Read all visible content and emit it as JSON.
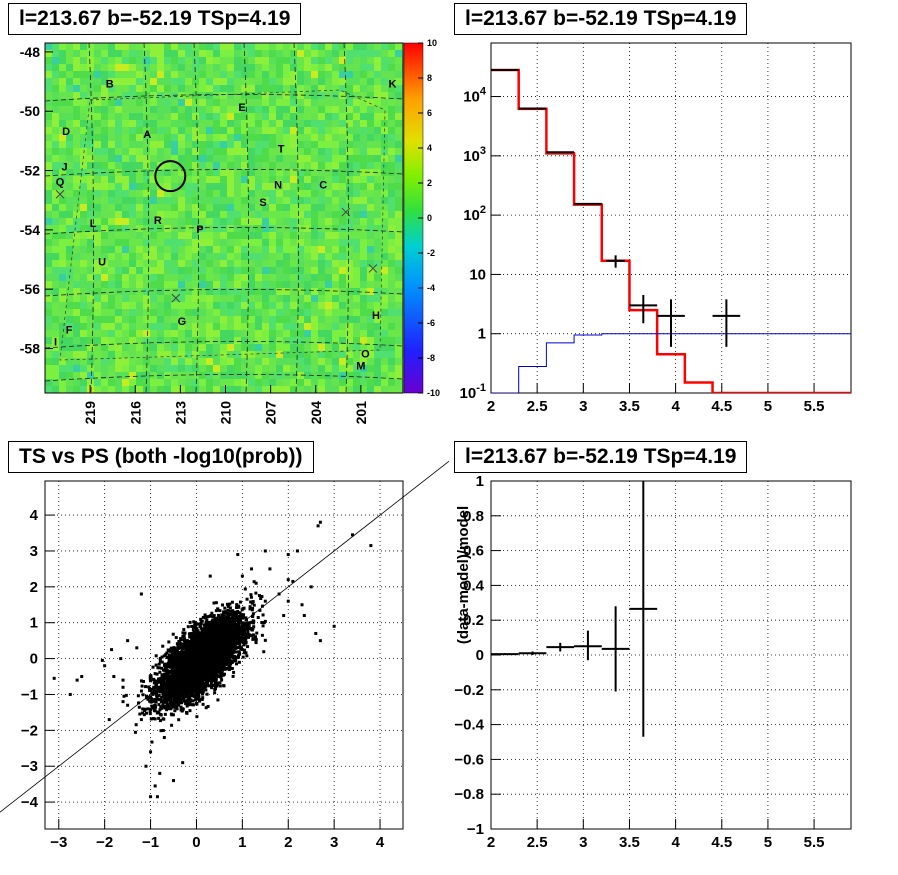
{
  "colors": {
    "accent": "#ff0000",
    "model_line": "#0000cc",
    "data_marks": "#000000"
  },
  "panels": {
    "sky_map": {
      "title": "l=213.67 b=-52.19 TSp=4.19"
    },
    "spectrum": {
      "title": "l=213.67 b=-52.19 TSp=4.19"
    },
    "ts_vs_ps": {
      "title": "TS vs PS (both -log10(prob))"
    },
    "residual": {
      "title": "l=213.67 b=-52.19 TSp=4.19"
    }
  },
  "chart_data": [
    {
      "type": "heatmap",
      "panel": "sky_map",
      "title": "l=213.67 b=-52.19 TSp=4.19",
      "xlabel": "",
      "ylabel": "",
      "x_ticks": [
        "219",
        "216",
        "213",
        "210",
        "207",
        "204",
        "201"
      ],
      "y_ticks": [
        "-48",
        "-50",
        "-52",
        "-54",
        "-56",
        "-58"
      ],
      "xlim": [
        222,
        198.2
      ],
      "ylim": [
        -59.5,
        -47.7
      ],
      "colorbar": {
        "min": -10,
        "max": 10,
        "ticks": [
          "10",
          "8",
          "6",
          "4",
          "2",
          "0",
          "-2",
          "-4",
          "-6",
          "-8",
          "-10"
        ]
      },
      "dominant_value_range": [
        0,
        1.5
      ],
      "labels": [
        {
          "text": "B",
          "l": 217.7,
          "b": -49.2
        },
        {
          "text": "K",
          "l": 198.9,
          "b": -49.2
        },
        {
          "text": "E",
          "l": 208.9,
          "b": -50.0
        },
        {
          "text": "D",
          "l": 220.6,
          "b": -50.8
        },
        {
          "text": "A",
          "l": 215.2,
          "b": -50.9
        },
        {
          "text": "T",
          "l": 206.3,
          "b": -51.4
        },
        {
          "text": "J",
          "l": 220.7,
          "b": -52.0
        },
        {
          "text": "Q",
          "l": 221.0,
          "b": -52.5
        },
        {
          "text": "N",
          "l": 206.5,
          "b": -52.6
        },
        {
          "text": "C",
          "l": 203.5,
          "b": -52.6
        },
        {
          "text": "S",
          "l": 207.5,
          "b": -53.2
        },
        {
          "text": "L",
          "l": 218.8,
          "b": -53.9
        },
        {
          "text": "R",
          "l": 214.5,
          "b": -53.8
        },
        {
          "text": "P",
          "l": 211.7,
          "b": -54.1
        },
        {
          "text": "U",
          "l": 218.2,
          "b": -55.2
        },
        {
          "text": "G",
          "l": 212.9,
          "b": -57.2
        },
        {
          "text": "H",
          "l": 200.0,
          "b": -57.0
        },
        {
          "text": "F",
          "l": 220.4,
          "b": -57.5
        },
        {
          "text": "I",
          "l": 221.3,
          "b": -57.9
        },
        {
          "text": "O",
          "l": 200.7,
          "b": -58.3
        },
        {
          "text": "M",
          "l": 201.0,
          "b": -58.7
        }
      ],
      "circle": {
        "l": 213.67,
        "b": -52.19
      },
      "crosses": [
        {
          "l": 202.0,
          "b": -53.4
        },
        {
          "l": 200.2,
          "b": -55.3
        },
        {
          "l": 213.3,
          "b": -56.3
        },
        {
          "l": 221.0,
          "b": -52.8
        }
      ]
    },
    {
      "type": "line",
      "panel": "spectrum",
      "title": "l=213.67 b=-52.19 TSp=4.19",
      "xlabel": "",
      "ylabel": "",
      "x_ticks": [
        "2",
        "2.5",
        "3",
        "3.5",
        "4",
        "4.5",
        "5",
        "5.5"
      ],
      "y_ticks": [
        "10^-1",
        "1",
        "10",
        "10^2",
        "10^3",
        "10^4"
      ],
      "xlim": [
        2,
        5.9
      ],
      "ylim": [
        0.1,
        80000
      ],
      "yscale": "log",
      "grid": true,
      "series": [
        {
          "style": "hist",
          "color": "#ff0000",
          "edges": [
            2,
            2.3,
            2.6,
            2.9,
            3.2,
            3.5,
            3.8,
            4.1,
            4.4,
            4.7,
            5.0,
            5.3,
            5.6,
            5.9
          ],
          "values": [
            28000,
            6200,
            1100,
            150,
            17,
            2.5,
            0.45,
            0.15,
            0.1,
            0.1,
            0.1,
            0.1,
            0.1
          ]
        },
        {
          "style": "hist",
          "color": "#0000cc",
          "edges": [
            2,
            2.3,
            2.6,
            2.9,
            3.2,
            3.5,
            3.8,
            4.1,
            4.4,
            4.7,
            5.0,
            5.3,
            5.6,
            5.9
          ],
          "values": [
            0.1,
            0.28,
            0.7,
            0.95,
            1.0,
            1.0,
            1.0,
            1.0,
            1.0,
            1.0,
            1.0,
            1.0,
            1.0
          ]
        },
        {
          "style": "errorbars",
          "color": "#000000",
          "points": [
            {
              "x": 2.15,
              "xerr": 0.15,
              "y": 28000,
              "ylo": 28000,
              "yhi": 28000
            },
            {
              "x": 2.45,
              "xerr": 0.15,
              "y": 6300,
              "ylo": 6300,
              "yhi": 6300
            },
            {
              "x": 2.75,
              "xerr": 0.15,
              "y": 1150,
              "ylo": 1150,
              "yhi": 1150
            },
            {
              "x": 3.05,
              "xerr": 0.15,
              "y": 155,
              "ylo": 155,
              "yhi": 155
            },
            {
              "x": 3.35,
              "xerr": 0.1,
              "y": 17,
              "ylo": 13,
              "yhi": 21
            },
            {
              "x": 3.65,
              "xerr": 0.15,
              "y": 3,
              "ylo": 1.5,
              "yhi": 4.5
            },
            {
              "x": 3.95,
              "xerr": 0.15,
              "y": 2,
              "ylo": 0.6,
              "yhi": 3.8
            },
            {
              "x": 4.55,
              "xerr": 0.15,
              "y": 2,
              "ylo": 0.6,
              "yhi": 3.8
            }
          ]
        }
      ]
    },
    {
      "type": "scatter",
      "panel": "ts_vs_ps",
      "title": "TS vs PS (both -log10(prob))",
      "xlabel": "",
      "ylabel": "",
      "x_ticks": [
        "−3",
        "−2",
        "−1",
        "0",
        "1",
        "2",
        "3",
        "4"
      ],
      "y_ticks": [
        "4",
        "3",
        "2",
        "1",
        "0",
        "−1",
        "−2",
        "−3",
        "−4"
      ],
      "xlim": [
        -3.3,
        4.5
      ],
      "ylim": [
        -4.75,
        4.95
      ],
      "grid": true,
      "reference_line": {
        "slope": 1,
        "intercept": 0
      },
      "core": {
        "x_center": 0.1,
        "y_center": -0.05,
        "x_spread": 0.45,
        "y_spread": 0.6,
        "count": 5000
      },
      "outliers": [
        [
          3.4,
          3.45
        ],
        [
          3.8,
          3.15
        ],
        [
          2.7,
          3.8
        ],
        [
          2.65,
          3.7
        ],
        [
          2.2,
          3.0
        ],
        [
          2.0,
          2.9
        ],
        [
          2.5,
          2.0
        ],
        [
          2.0,
          2.2
        ],
        [
          1.6,
          2.5
        ],
        [
          1.3,
          2.1
        ],
        [
          1.5,
          1.6
        ],
        [
          2.6,
          0.7
        ],
        [
          2.7,
          0.5
        ],
        [
          3.0,
          0.9
        ],
        [
          2.3,
          1.5
        ],
        [
          1.9,
          1.2
        ],
        [
          -1.5,
          0.5
        ],
        [
          -1.65,
          0.0
        ],
        [
          -2.05,
          -0.05
        ],
        [
          -2.5,
          -0.5
        ],
        [
          -2.6,
          -0.6
        ],
        [
          -3.1,
          -0.55
        ],
        [
          -2.75,
          -1.0
        ],
        [
          -2.0,
          -0.2
        ],
        [
          -1.6,
          -0.8
        ],
        [
          -1.9,
          -1.7
        ],
        [
          -1.2,
          -1.7
        ],
        [
          -1.8,
          -0.5
        ],
        [
          -1.5,
          -1.3
        ],
        [
          -0.7,
          -2.2
        ],
        [
          -1.0,
          -2.6
        ],
        [
          -1.1,
          -3.0
        ],
        [
          -0.8,
          -3.2
        ],
        [
          -1.0,
          -3.85
        ],
        [
          -0.85,
          -3.85
        ],
        [
          -0.9,
          -3.55
        ],
        [
          -1.2,
          1.8
        ],
        [
          -1.6,
          -1.2
        ],
        [
          -1.3,
          0.3
        ],
        [
          -1.6,
          -0.6
        ],
        [
          -1.85,
          0.25
        ],
        [
          1.8,
          1.8
        ],
        [
          2.0,
          1.6
        ],
        [
          1.2,
          2.5
        ],
        [
          1.0,
          2.3
        ],
        [
          0.9,
          2.9
        ],
        [
          1.5,
          3.0
        ],
        [
          -0.3,
          -2.9
        ],
        [
          -0.5,
          -3.4
        ],
        [
          2.35,
          1.2
        ],
        [
          0.3,
          2.3
        ],
        [
          2.1,
          2.15
        ]
      ]
    },
    {
      "type": "scatter",
      "panel": "residual",
      "title": "l=213.67 b=-52.19 TSp=4.19",
      "xlabel": "",
      "ylabel": "(data-model)/model",
      "x_ticks": [
        "2",
        "2.5",
        "3",
        "3.5",
        "4",
        "4.5",
        "5",
        "5.5"
      ],
      "y_ticks": [
        "1",
        "0.8",
        "0.6",
        "0.4",
        "0.2",
        "0",
        "−0.2",
        "−0.4",
        "−0.6",
        "−0.8",
        "−1"
      ],
      "xlim": [
        2,
        5.9
      ],
      "ylim": [
        -1,
        1
      ],
      "grid": true,
      "points": [
        {
          "x": 2.15,
          "xerr": 0.15,
          "y": 0.005,
          "ylo": 0.0,
          "yhi": 0.01
        },
        {
          "x": 2.45,
          "xerr": 0.15,
          "y": 0.01,
          "ylo": 0.0,
          "yhi": 0.02
        },
        {
          "x": 2.75,
          "xerr": 0.15,
          "y": 0.045,
          "ylo": 0.02,
          "yhi": 0.07
        },
        {
          "x": 3.05,
          "xerr": 0.15,
          "y": 0.05,
          "ylo": -0.03,
          "yhi": 0.14
        },
        {
          "x": 3.35,
          "xerr": 0.15,
          "y": 0.035,
          "ylo": -0.21,
          "yhi": 0.28
        },
        {
          "x": 3.65,
          "xerr": 0.15,
          "y": 0.265,
          "ylo": -0.47,
          "yhi": 1.0
        }
      ]
    }
  ]
}
